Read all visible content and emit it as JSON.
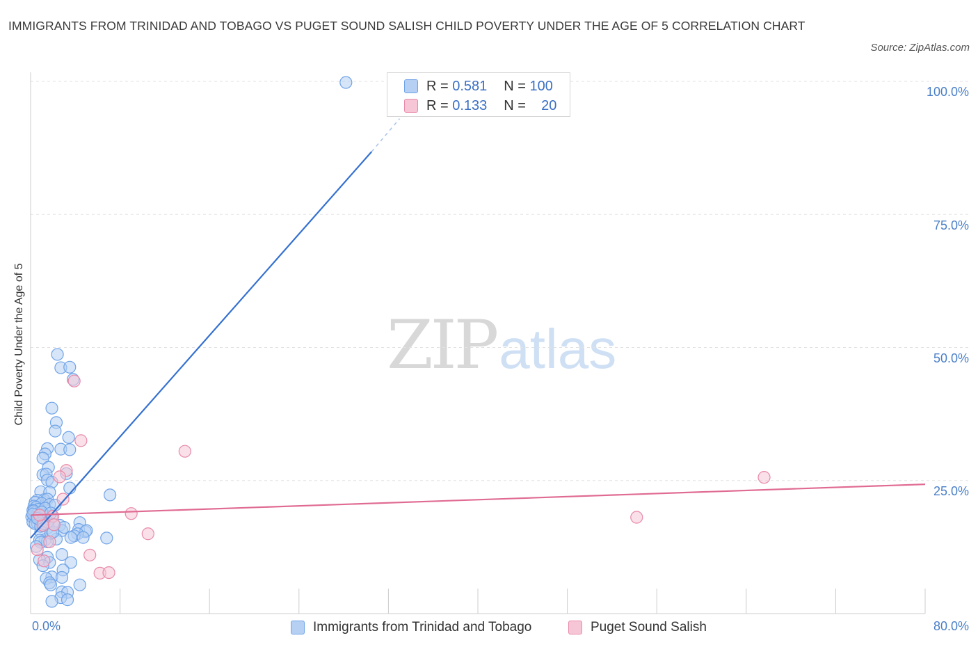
{
  "chart_data": {
    "type": "scatter",
    "title": "IMMIGRANTS FROM TRINIDAD AND TOBAGO VS PUGET SOUND SALISH CHILD POVERTY UNDER THE AGE OF 5 CORRELATION CHART",
    "source": "Source: ZipAtlas.com",
    "ylabel": "Child Poverty Under the Age of 5",
    "xlabel": "",
    "xlim": [
      0,
      80
    ],
    "ylim": [
      0,
      100
    ],
    "x_ticks": [
      "0.0%",
      "80.0%"
    ],
    "y_ticks": [
      {
        "value": 100,
        "label": "100.0%"
      },
      {
        "value": 75,
        "label": "75.0%"
      },
      {
        "value": 50,
        "label": "50.0%"
      },
      {
        "value": 25,
        "label": "25.0%"
      }
    ],
    "watermark": {
      "zip": "ZIP",
      "atlas": "atlas"
    },
    "series": [
      {
        "name": "Immigrants from Trinidad and Tobago",
        "color": "#6fa3e8",
        "fill": "#b5d0f3",
        "line_color": "#3470d0",
        "R": "0.581",
        "N": "100",
        "trend": {
          "x0": 0,
          "y0": 14.2,
          "x1": 30.5,
          "y1": 86.8,
          "x_dash_end": 33,
          "y_dash_end": 93
        },
        "points": [
          [
            28.2,
            99.8
          ],
          [
            2.4,
            48.7
          ],
          [
            2.7,
            46.2
          ],
          [
            3.5,
            46.3
          ],
          [
            3.8,
            44.0
          ],
          [
            1.9,
            38.6
          ],
          [
            2.3,
            35.9
          ],
          [
            2.2,
            34.3
          ],
          [
            3.4,
            33.1
          ],
          [
            1.5,
            31.0
          ],
          [
            2.7,
            30.9
          ],
          [
            3.5,
            30.8
          ],
          [
            1.3,
            30.0
          ],
          [
            1.1,
            29.2
          ],
          [
            1.6,
            27.5
          ],
          [
            1.1,
            26.1
          ],
          [
            1.4,
            26.2
          ],
          [
            3.2,
            26.3
          ],
          [
            1.5,
            25.1
          ],
          [
            1.9,
            24.7
          ],
          [
            3.5,
            23.6
          ],
          [
            0.9,
            22.9
          ],
          [
            1.7,
            22.8
          ],
          [
            7.1,
            22.3
          ],
          [
            1.2,
            21.4
          ],
          [
            1.5,
            21.5
          ],
          [
            0.6,
            21.3
          ],
          [
            0.4,
            20.9
          ],
          [
            1.0,
            20.7
          ],
          [
            1.7,
            20.5
          ],
          [
            0.3,
            20.2
          ],
          [
            0.5,
            20.0
          ],
          [
            0.7,
            19.6
          ],
          [
            0.2,
            19.4
          ],
          [
            0.4,
            19.0
          ],
          [
            0.6,
            18.8
          ],
          [
            0.9,
            18.6
          ],
          [
            1.2,
            18.4
          ],
          [
            0.1,
            18.2
          ],
          [
            0.3,
            18.0
          ],
          [
            0.5,
            17.8
          ],
          [
            0.8,
            17.6
          ],
          [
            1.1,
            17.4
          ],
          [
            0.2,
            17.2
          ],
          [
            0.6,
            17.0
          ],
          [
            1.4,
            18.1
          ],
          [
            1.9,
            18.3
          ],
          [
            2.6,
            16.6
          ],
          [
            4.4,
            17.1
          ],
          [
            1.6,
            16.2
          ],
          [
            0.9,
            15.3
          ],
          [
            2.8,
            15.6
          ],
          [
            4.3,
            15.8
          ],
          [
            4.9,
            15.4
          ],
          [
            5.0,
            15.6
          ],
          [
            4.2,
            15.0
          ],
          [
            3.9,
            14.6
          ],
          [
            3.6,
            14.3
          ],
          [
            4.7,
            14.3
          ],
          [
            6.8,
            14.2
          ],
          [
            2.3,
            14.0
          ],
          [
            1.3,
            13.9
          ],
          [
            0.8,
            13.8
          ],
          [
            1.5,
            13.5
          ],
          [
            0.9,
            13.4
          ],
          [
            0.5,
            12.6
          ],
          [
            1.8,
            15.1
          ],
          [
            2.0,
            15.3
          ],
          [
            1.5,
            10.6
          ],
          [
            2.8,
            11.1
          ],
          [
            0.8,
            10.1
          ],
          [
            1.7,
            9.6
          ],
          [
            3.6,
            9.6
          ],
          [
            1.1,
            9.0
          ],
          [
            2.9,
            8.2
          ],
          [
            1.9,
            6.9
          ],
          [
            1.4,
            6.6
          ],
          [
            2.8,
            6.8
          ],
          [
            1.7,
            5.8
          ],
          [
            4.4,
            5.4
          ],
          [
            1.8,
            5.4
          ],
          [
            2.8,
            4.1
          ],
          [
            3.3,
            4.0
          ],
          [
            2.7,
            3.0
          ],
          [
            3.3,
            2.6
          ],
          [
            1.9,
            2.3
          ],
          [
            0.3,
            19.3
          ],
          [
            0.7,
            18.1
          ],
          [
            1.3,
            19.8
          ],
          [
            2.2,
            20.4
          ],
          [
            0.4,
            16.9
          ],
          [
            0.9,
            16.4
          ],
          [
            1.5,
            17.2
          ],
          [
            0.2,
            18.7
          ],
          [
            1.0,
            19.1
          ],
          [
            1.8,
            18.9
          ],
          [
            1.2,
            16.9
          ],
          [
            2.1,
            16.7
          ],
          [
            0.6,
            17.9
          ],
          [
            3.0,
            16.2
          ]
        ]
      },
      {
        "name": "Puget Sound Salish",
        "color": "#e88aa8",
        "fill": "#f6c6d6",
        "line_color": "#e06b92",
        "R": "0.133",
        "N": "20",
        "trend": {
          "x0": 0,
          "y0": 18.5,
          "x1": 80,
          "y1": 24.3
        },
        "points": [
          [
            3.9,
            43.7
          ],
          [
            4.5,
            32.5
          ],
          [
            13.8,
            30.5
          ],
          [
            3.2,
            26.9
          ],
          [
            65.6,
            25.6
          ],
          [
            2.6,
            25.7
          ],
          [
            2.9,
            21.5
          ],
          [
            9.0,
            18.8
          ],
          [
            54.2,
            18.1
          ],
          [
            2.0,
            18.3
          ],
          [
            1.1,
            16.6
          ],
          [
            2.1,
            16.7
          ],
          [
            10.5,
            15.0
          ],
          [
            1.7,
            13.5
          ],
          [
            0.6,
            12.0
          ],
          [
            5.3,
            11.0
          ],
          [
            1.2,
            9.9
          ],
          [
            6.2,
            7.6
          ],
          [
            7.0,
            7.7
          ],
          [
            0.8,
            18.5
          ]
        ]
      }
    ]
  }
}
